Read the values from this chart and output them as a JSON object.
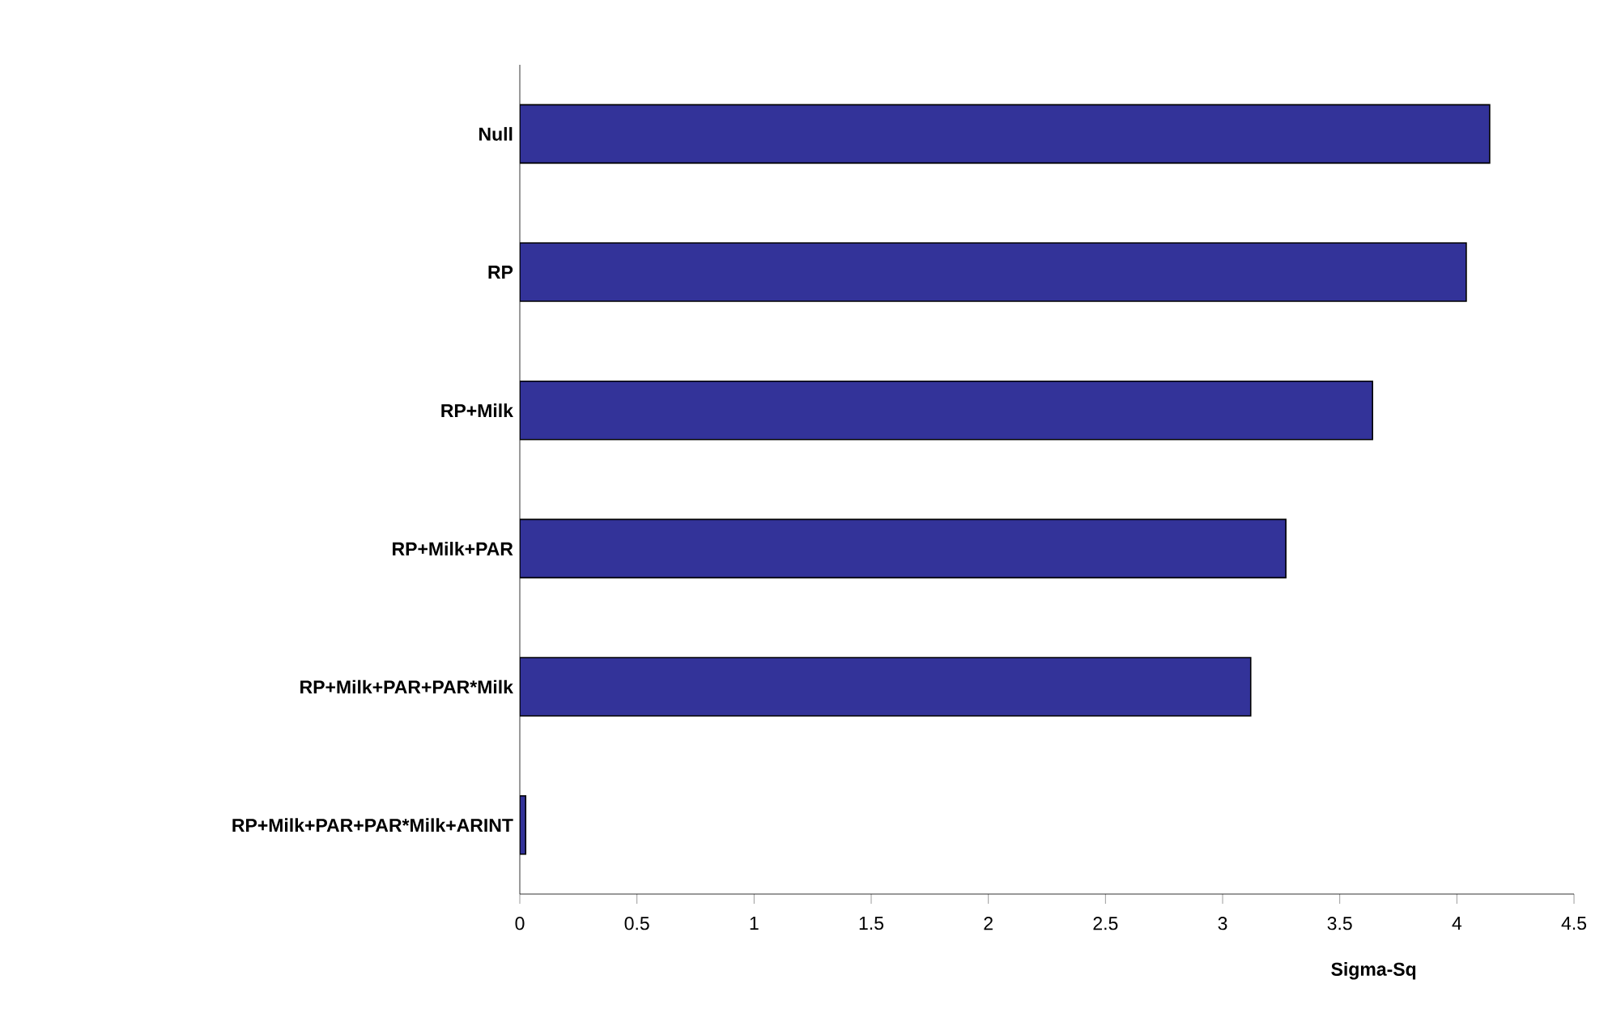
{
  "chart_data": {
    "type": "bar",
    "orientation": "horizontal",
    "xlabel": "Sigma-Sq",
    "categories": [
      "Null",
      "RP",
      "RP+Milk",
      "RP+Milk+PAR",
      "RP+Milk+PAR+PAR*Milk",
      "RP+Milk+PAR+PAR*Milk+ARINT"
    ],
    "values": [
      4.14,
      4.04,
      3.64,
      3.27,
      3.12,
      0.025
    ],
    "color": "#333399",
    "xlim": [
      0,
      4.5
    ],
    "xticks": [
      0,
      0.5,
      1,
      1.5,
      2,
      2.5,
      3,
      3.5,
      4,
      4.5
    ]
  }
}
